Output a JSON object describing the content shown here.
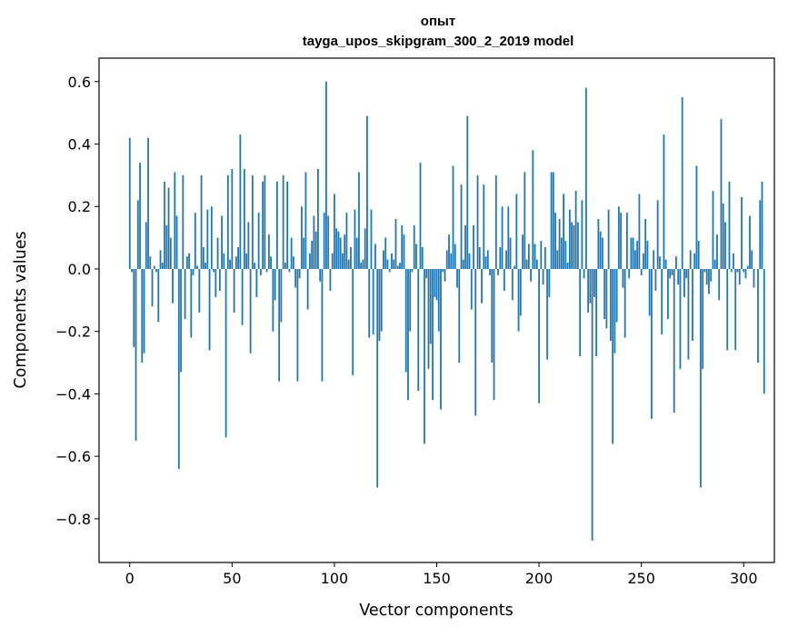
{
  "chart_data": {
    "type": "bar",
    "title_line1": "опыт",
    "title_line2": "tayga_upos_skipgram_300_2_2019 model",
    "xlabel": "Vector components",
    "ylabel": "Components values",
    "xlim": [
      -15,
      315
    ],
    "ylim": [
      -0.94,
      0.675
    ],
    "xticks": [
      0,
      50,
      100,
      150,
      200,
      250,
      300
    ],
    "yticks": [
      -0.8,
      -0.6,
      -0.4,
      -0.2,
      0.0,
      0.2,
      0.4,
      0.6
    ],
    "ytick_labels": [
      "−0.8",
      "−0.6",
      "−0.4",
      "−0.2",
      "0.0",
      "0.2",
      "0.4",
      "0.6"
    ],
    "bar_color": "#1f77b4",
    "values": [
      0.42,
      -0.01,
      -0.25,
      -0.55,
      0.22,
      0.34,
      -0.3,
      -0.27,
      0.15,
      0.42,
      0.04,
      -0.12,
      0.01,
      -0.01,
      -0.17,
      0.06,
      0.02,
      0.28,
      0.14,
      0.26,
      0.1,
      -0.11,
      0.31,
      0.17,
      -0.64,
      -0.33,
      0.3,
      -0.16,
      0.04,
      0.05,
      -0.22,
      -0.02,
      0.18,
      0.01,
      -0.14,
      0.3,
      0.07,
      0.02,
      0.19,
      -0.26,
      0.2,
      -0.01,
      -0.09,
      0.1,
      -0.07,
      0.17,
      0.05,
      -0.54,
      0.3,
      0.03,
      0.32,
      -0.14,
      0.04,
      0.07,
      0.43,
      -0.18,
      0.32,
      0.05,
      0.15,
      -0.27,
      0.3,
      0.02,
      -0.09,
      0.18,
      -0.02,
      0.28,
      0.3,
      -0.01,
      0.11,
      0.04,
      -0.2,
      -0.1,
      0.28,
      -0.36,
      -0.17,
      0.3,
      0.02,
      0.28,
      -0.01,
      0.1,
      0.04,
      -0.06,
      -0.36,
      -0.03,
      0.2,
      0.1,
      0.31,
      -0.13,
      0.05,
      0.09,
      0.17,
      0.12,
      0.32,
      -0.04,
      -0.36,
      0.18,
      0.6,
      0.17,
      -0.07,
      0.05,
      0.24,
      0.13,
      0.12,
      0.1,
      0.05,
      0.11,
      0.18,
      0.03,
      0.07,
      -0.34,
      0.19,
      0.1,
      0.31,
      0.02,
      0.03,
      0.13,
      0.49,
      -0.22,
      0.19,
      -0.21,
      0.08,
      -0.7,
      -0.23,
      -0.2,
      0.06,
      0.1,
      0.03,
      -0.01,
      0.05,
      0.03,
      0.16,
      0.01,
      0.02,
      0.14,
      0.11,
      -0.33,
      -0.42,
      -0.2,
      -0.01,
      0.14,
      0.08,
      -0.39,
      0.34,
      0.07,
      -0.56,
      -0.03,
      -0.32,
      -0.24,
      -0.42,
      -0.09,
      -0.1,
      -0.2,
      -0.45,
      -0.01,
      -0.04,
      0.06,
      0.11,
      0.05,
      0.33,
      0.08,
      -0.06,
      -0.3,
      0.27,
      0.03,
      0.14,
      0.49,
      0.05,
      -0.13,
      0.14,
      -0.47,
      0.3,
      0.07,
      -0.11,
      0.27,
      0.04,
      0.06,
      -0.02,
      -0.3,
      -0.42,
      0.3,
      -0.02,
      0.07,
      0.2,
      -0.07,
      0.06,
      0.2,
      0.1,
      -0.1,
      0.01,
      0.24,
      -0.2,
      -0.15,
      0.11,
      0.31,
      0.03,
      0.08,
      -0.04,
      0.38,
      0.08,
      0.03,
      -0.43,
      0.09,
      -0.05,
      0.07,
      -0.29,
      -0.09,
      0.31,
      0.31,
      0.18,
      0.06,
      0.16,
      0.1,
      0.24,
      0.09,
      0.02,
      0.19,
      0.15,
      0.14,
      0.25,
      0.15,
      -0.28,
      0.22,
      -0.03,
      0.58,
      -0.14,
      -0.11,
      -0.87,
      -0.09,
      -0.28,
      0.16,
      0.12,
      0.1,
      -0.16,
      -0.19,
      0.19,
      -0.23,
      -0.56,
      -0.27,
      -0.17,
      0.2,
      0.18,
      -0.06,
      -0.22,
      0.18,
      -0.03,
      0.1,
      0.1,
      0.06,
      0.09,
      0.24,
      -0.02,
      0.05,
      0.16,
      0.09,
      -0.15,
      -0.48,
      0.06,
      -0.07,
      0.22,
      0.04,
      -0.21,
      0.43,
      0.03,
      -0.16,
      -0.03,
      -0.02,
      -0.46,
      0.04,
      -0.05,
      -0.32,
      0.55,
      -0.09,
      -0.03,
      -0.29,
      0.06,
      -0.23,
      0.05,
      0.33,
      0.09,
      -0.7,
      -0.32,
      -0.01,
      -0.05,
      -0.08,
      -0.04,
      0.25,
      0.03,
      0.11,
      -0.1,
      0.48,
      0.21,
      0.15,
      -0.26,
      0.28,
      -0.01,
      0.05,
      -0.26,
      -0.01,
      -0.05,
      0.23,
      -0.01,
      -0.03,
      0.01,
      0.17,
      0.06,
      -0.06,
      0.0,
      -0.3,
      0.22,
      0.28,
      -0.4
    ]
  }
}
